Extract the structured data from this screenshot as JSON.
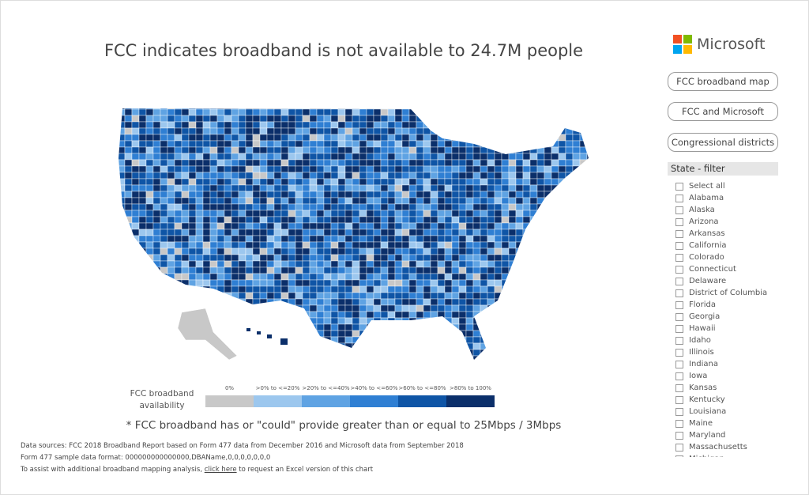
{
  "header": {
    "title": "FCC indicates broadband is not available to 24.7M people",
    "logo": "Microsoft"
  },
  "buttons": [
    "FCC broadband map",
    "FCC and Microsoft",
    "Congressional districts"
  ],
  "filter": {
    "title": "State - filter",
    "items": [
      "Select all",
      "Alabama",
      "Alaska",
      "Arizona",
      "Arkansas",
      "California",
      "Colorado",
      "Connecticut",
      "Delaware",
      "District of Columbia",
      "Florida",
      "Georgia",
      "Hawaii",
      "Idaho",
      "Illinois",
      "Indiana",
      "Iowa",
      "Kansas",
      "Kentucky",
      "Louisiana",
      "Maine",
      "Maryland",
      "Massachusetts",
      "Michigan"
    ]
  },
  "legend": {
    "title": "FCC broadband availability",
    "items": [
      {
        "label": "0%",
        "color": "#c8c8c8"
      },
      {
        "label": ">0% to <=20%",
        "color": "#9cc7ee"
      },
      {
        "label": ">20% to <=40%",
        "color": "#5fa3e3"
      },
      {
        "label": ">40% to <=60%",
        "color": "#2f7fd3"
      },
      {
        "label": ">60% to <=80%",
        "color": "#0f55a6"
      },
      {
        "label": ">80% to 100%",
        "color": "#0b2f6a"
      }
    ]
  },
  "footnote": "* FCC broadband has or \"could\" provide greater than or equal to 25Mbps / 3Mbps",
  "sources": {
    "line1": "Data sources:  FCC 2018 Broadband Report based on Form 477 data from December 2016 and Microsoft data from September 2018",
    "line2": "Form 477 sample data format: 000000000000000,DBAName,0,0,0,0,0,0,0",
    "line3": {
      "before": "To assist with additional broadband mapping analysis, ",
      "link": "click here",
      "after": " to request an Excel version of this chart"
    }
  }
}
